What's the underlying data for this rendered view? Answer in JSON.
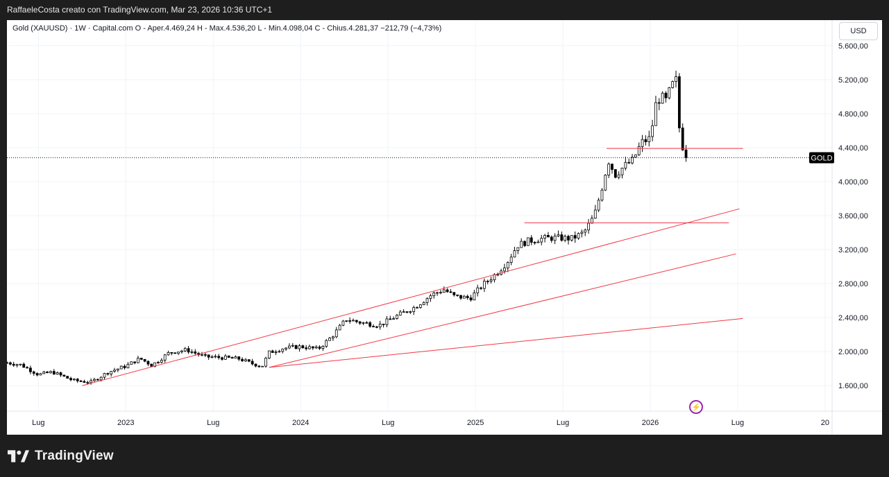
{
  "header": {
    "attribution": "RaffaeleCosta creato con TradingView.com, Mar 23, 2026 10:36 UTC+1"
  },
  "legend": {
    "text": "Gold (XAUUSD) · 1W · Capital.com  O - Aper.4.469,24  H - Max.4.536,20  L - Min.4.098,04  C - Chius.4.281,37  −212,79 (−4,73%)"
  },
  "currency_button": "USD",
  "symbol_tag": "GOLD",
  "brand": {
    "name": "TradingView"
  },
  "colors": {
    "up": "#ffffff",
    "down": "#000000",
    "trend": "#f23645",
    "grid": "#f0f3fa"
  },
  "chart_data": {
    "type": "candlestick",
    "title": "Gold (XAUUSD) 1W Capital.com",
    "y_range": [
      1300,
      5900
    ],
    "y_ticks": [
      "1.600,00",
      "2.000,00",
      "2.400,00",
      "2.800,00",
      "3.200,00",
      "3.600,00",
      "4.000,00",
      "4.400,00",
      "4.800,00",
      "5.200,00",
      "5.600,00"
    ],
    "y_tick_values": [
      1600,
      2000,
      2400,
      2800,
      3200,
      3600,
      4000,
      4400,
      4800,
      5200,
      5600
    ],
    "x_ticks": [
      "Lug",
      "2023",
      "Lug",
      "2024",
      "Lug",
      "2025",
      "Lug",
      "2026",
      "Lug",
      "20"
    ],
    "x_tick_times": [
      2022.5,
      2023.0,
      2023.5,
      2024.0,
      2024.5,
      2025.0,
      2025.5,
      2026.0,
      2026.5,
      2027.0
    ],
    "x_range": [
      2022.32,
      2027.04
    ],
    "last_close": 4281.37,
    "price_points": [
      [
        2022.32,
        1870
      ],
      [
        2022.4,
        1845
      ],
      [
        2022.5,
        1730
      ],
      [
        2022.58,
        1760
      ],
      [
        2022.7,
        1660
      ],
      [
        2022.8,
        1640
      ],
      [
        2022.9,
        1760
      ],
      [
        2023.0,
        1830
      ],
      [
        2023.08,
        1920
      ],
      [
        2023.15,
        1840
      ],
      [
        2023.25,
        1990
      ],
      [
        2023.35,
        2020
      ],
      [
        2023.45,
        1940
      ],
      [
        2023.55,
        1930
      ],
      [
        2023.65,
        1915
      ],
      [
        2023.72,
        1860
      ],
      [
        2023.78,
        1830
      ],
      [
        2023.82,
        1990
      ],
      [
        2023.9,
        2040
      ],
      [
        2024.0,
        2060
      ],
      [
        2024.1,
        2030
      ],
      [
        2024.18,
        2180
      ],
      [
        2024.26,
        2380
      ],
      [
        2024.35,
        2340
      ],
      [
        2024.45,
        2310
      ],
      [
        2024.55,
        2420
      ],
      [
        2024.65,
        2520
      ],
      [
        2024.75,
        2670
      ],
      [
        2024.82,
        2730
      ],
      [
        2024.88,
        2650
      ],
      [
        2024.97,
        2630
      ],
      [
        2025.05,
        2800
      ],
      [
        2025.12,
        2920
      ],
      [
        2025.18,
        3050
      ],
      [
        2025.24,
        3250
      ],
      [
        2025.3,
        3300
      ],
      [
        2025.38,
        3330
      ],
      [
        2025.45,
        3340
      ],
      [
        2025.55,
        3330
      ],
      [
        2025.62,
        3400
      ],
      [
        2025.68,
        3600
      ],
      [
        2025.72,
        3900
      ],
      [
        2025.76,
        4250
      ],
      [
        2025.8,
        4080
      ],
      [
        2025.85,
        4180
      ],
      [
        2025.9,
        4250
      ],
      [
        2025.95,
        4460
      ],
      [
        2026.0,
        4510
      ],
      [
        2026.03,
        4900
      ],
      [
        2026.06,
        5000
      ],
      [
        2026.09,
        4950
      ],
      [
        2026.12,
        5120
      ],
      [
        2026.15,
        5200
      ],
      [
        2026.17,
        4500
      ],
      [
        2026.21,
        4281
      ]
    ],
    "annotations": {
      "trendlines": [
        {
          "from": [
            2022.75,
            1600
          ],
          "to": [
            2026.51,
            3680
          ]
        },
        {
          "from": [
            2023.82,
            1815
          ],
          "to": [
            2026.49,
            3150
          ]
        },
        {
          "from": [
            2023.82,
            1815
          ],
          "to": [
            2026.53,
            2390
          ]
        }
      ],
      "horizontal_lines": [
        {
          "price": 4390,
          "from": 2025.75,
          "to": 2026.53
        },
        {
          "price": 3515,
          "from": 2025.28,
          "to": 2026.45
        }
      ]
    }
  }
}
